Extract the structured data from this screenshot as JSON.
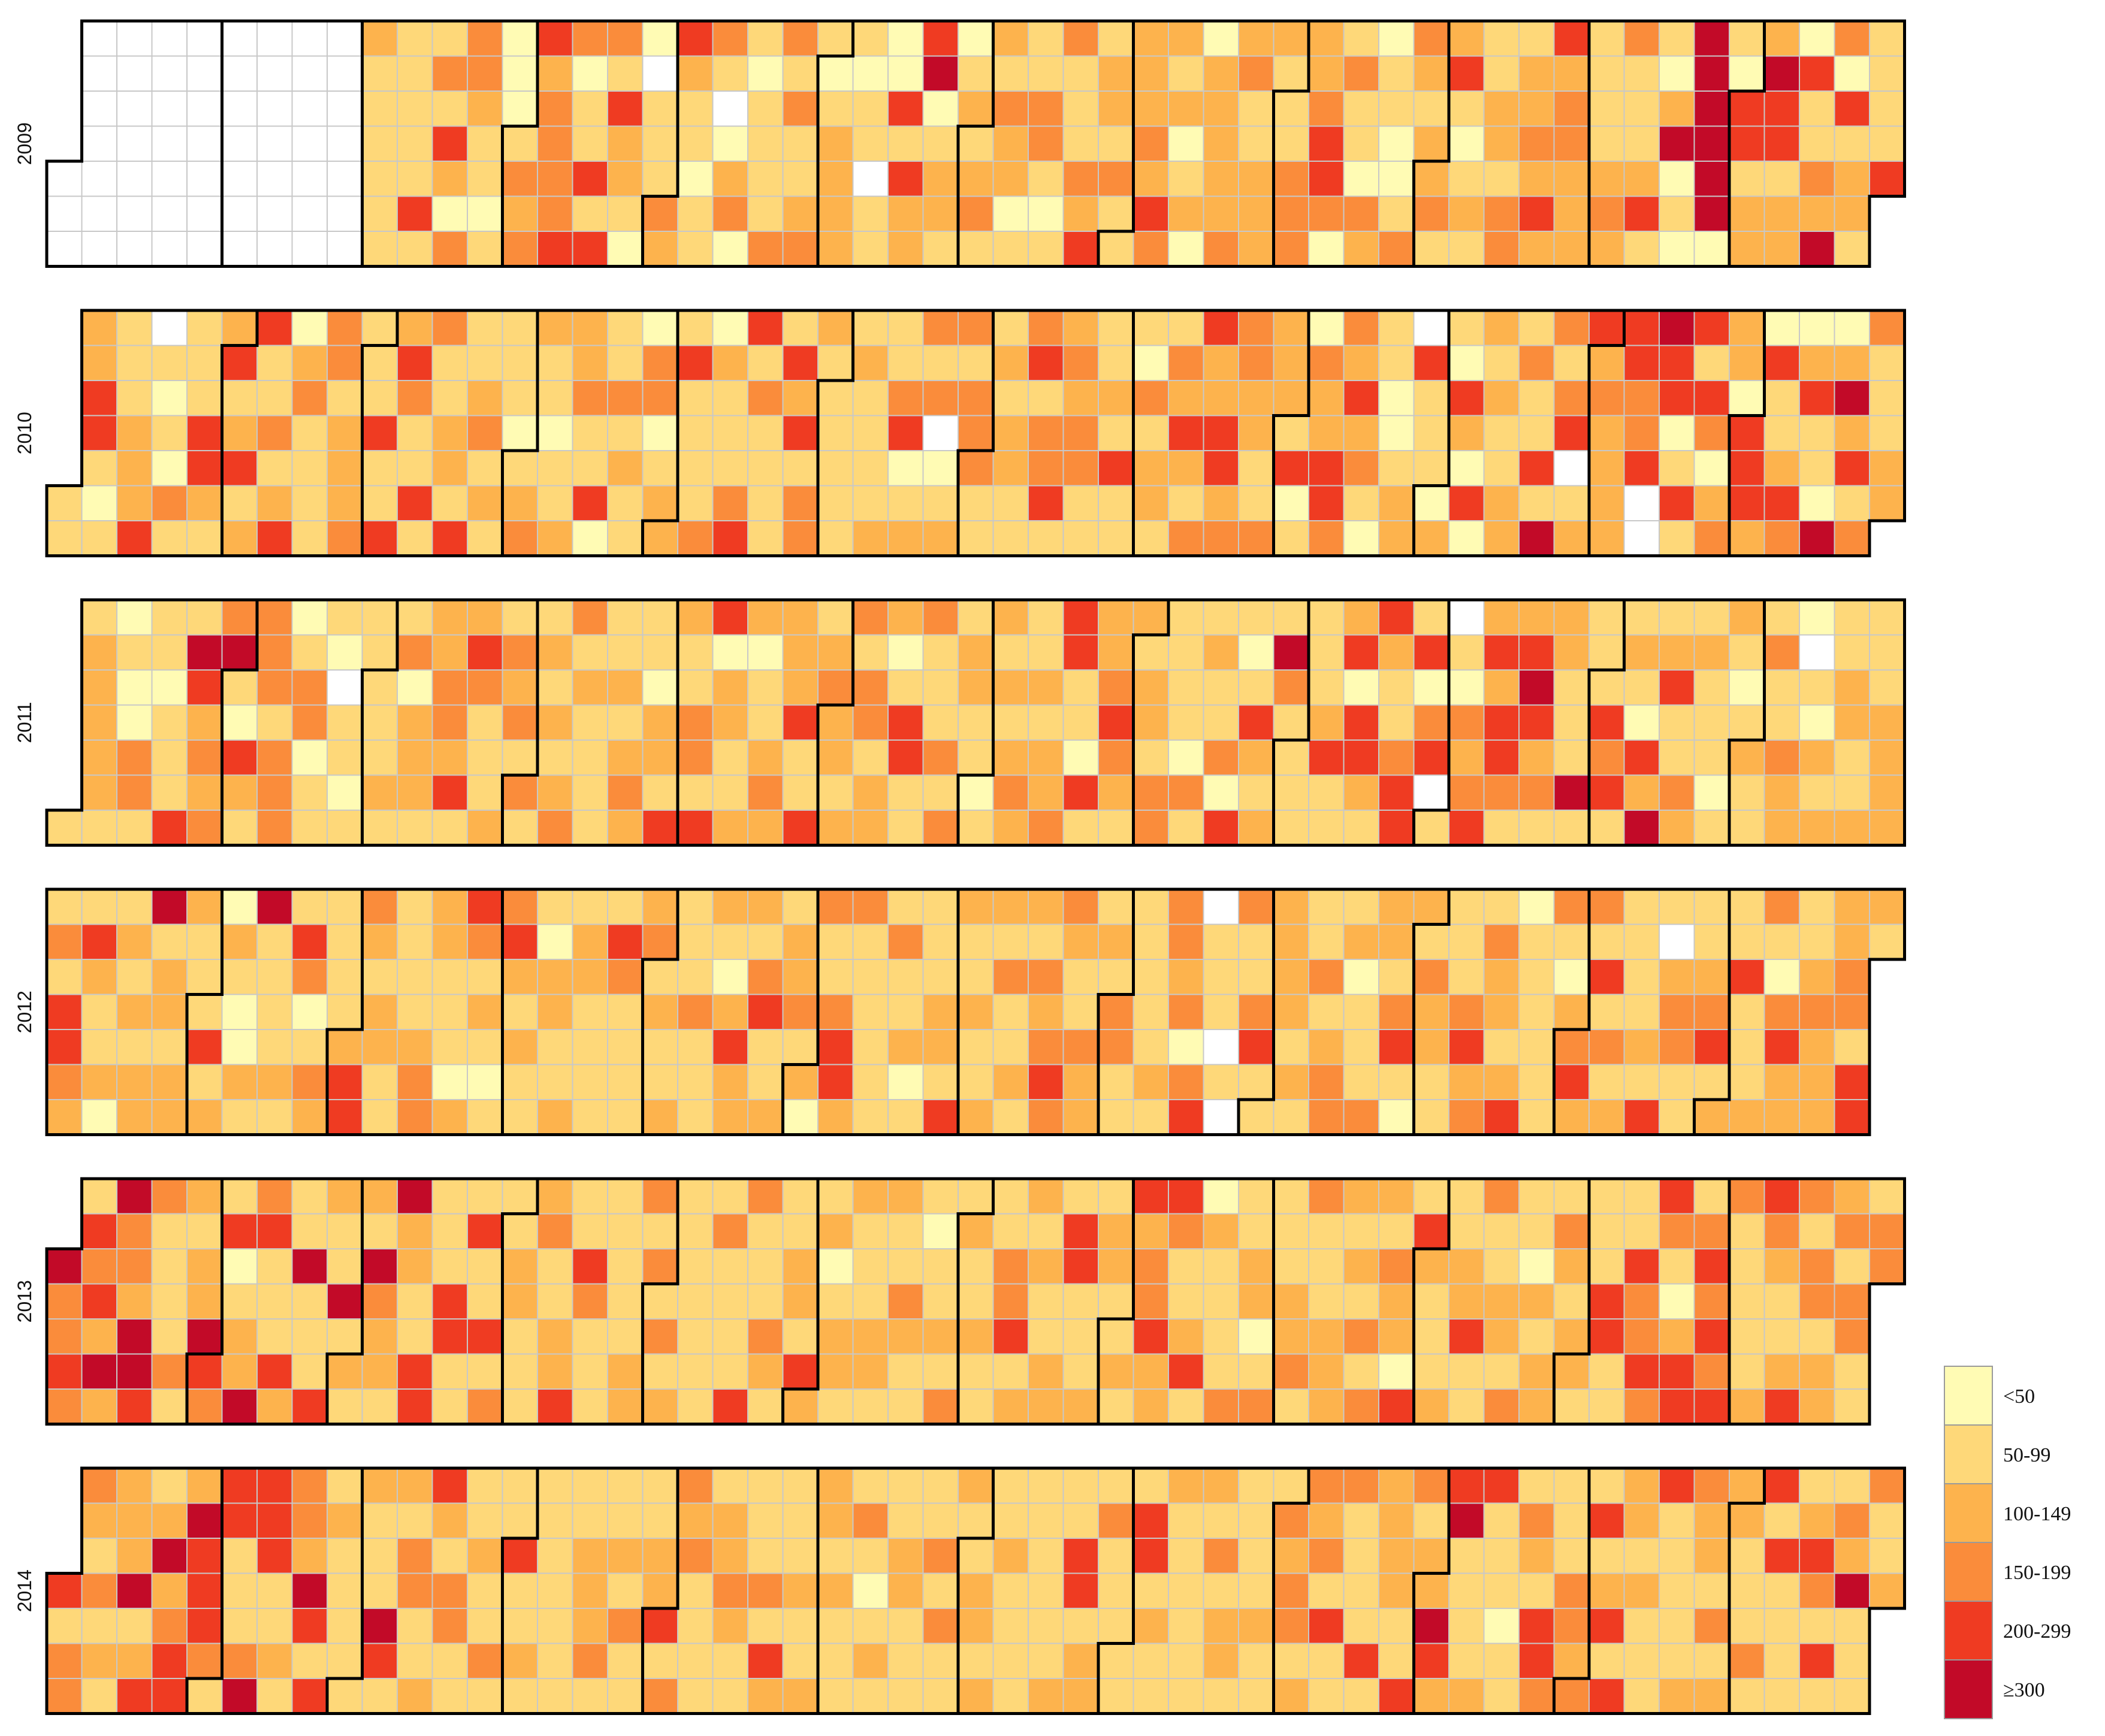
{
  "chart_data": {
    "type": "heatmap",
    "subtype": "calendar",
    "title": "",
    "layout": "one row per year, columns are weeks, rows are weekdays Sunday-Saturday, thick outlines separate months",
    "years": [
      2009,
      2010,
      2011,
      2012,
      2013,
      2014
    ],
    "data_start_date": "2009-03-01",
    "empty_color": "#ffffff",
    "legend": {
      "position": "bottom-right",
      "bins": [
        {
          "label": "<50",
          "color": "#fffbb4"
        },
        {
          "label": "50-99",
          "color": "#fed879"
        },
        {
          "label": "100-149",
          "color": "#fdb34d"
        },
        {
          "label": "150-199",
          "color": "#fa8c3b"
        },
        {
          "label": "200-299",
          "color": "#ef3b22"
        },
        {
          "label": "≥300",
          "color": "#c20a28"
        }
      ]
    },
    "values_note": "Daily values are encoded as bin indices 0-5 (index into legend.bins); '.' means no data. Each year string lists every day of the year in order.",
    "daily_bins": {
      "2009": "...........................................................211111111111411314203332110100013234233334301141431422100.11132421101131.02301011113313112310122221011.11004142245012210121231213220111331013111324122131122232432120120022222323112222111333223443013110320110013321223124101211122133122324242332221111232311124110250105555550104412225441220411325304122111114",
      "2010": "1122441011112224.101031111442124124124113124023111133122231114114243114131122141123121111012321101122231140113121103301221411113021113441311111424133211111112111121134012313.0123133311121221134133412323311112141110312211324213422442333221132221401032244332423101100122.4111021042040212112213114153134.12423222244334..54401414143023220444204112430241105025241331112221000212122",
      "2011": "1122222101003311101114154232335104213331333013301110.110111111211302221223324124311121323131121212331211111121232110221421133144022112201123222241141232212313312220144113111313122110121212321121223441104122343212122133111103112113041014212153111111124112404421421134414034.1.1032342424431245423122111511114341121042512411321211101210121113113220.1021211221121112222213131213304314",
      "2012": "131443214211201212122512212221114120210021511112114301321111244321221111112332211102431210134212111022112122111114311112312112111311121024222134112122312031134423111111131120111122142112112213112121323433211322121331111111213323034.111.1.3113411222212111312331201113221341021322111113423132212401111113102342314131211112141.2331111234121141112310342211232222233144214141113.111",
      "2013": "5334314342525332554311113121225431401225341114211511142115121215322152211441114411141141311221112311224114311111111223131312111111113111143111321112214212012212111221211321110112131211211113341221211221441112122112142334224311241021111311220131112231311122221213132132204142111211224113112213110212213212211114411114334343102441343434311111243211243133122231331113311441123141411243",
      "2014": "41333213121222512412523442544431441113544411213325414121111121115412133112421331111211311141121111111111222311121311112241332311111223211111314211121122212111131012111221111131311211221211211111111112114412213111111441211211111121312211111211132331232314113111141222211431225424511112411101113214431113323141241422121114111112322131222111314141111124314113251113112111321115212121213"
    }
  }
}
